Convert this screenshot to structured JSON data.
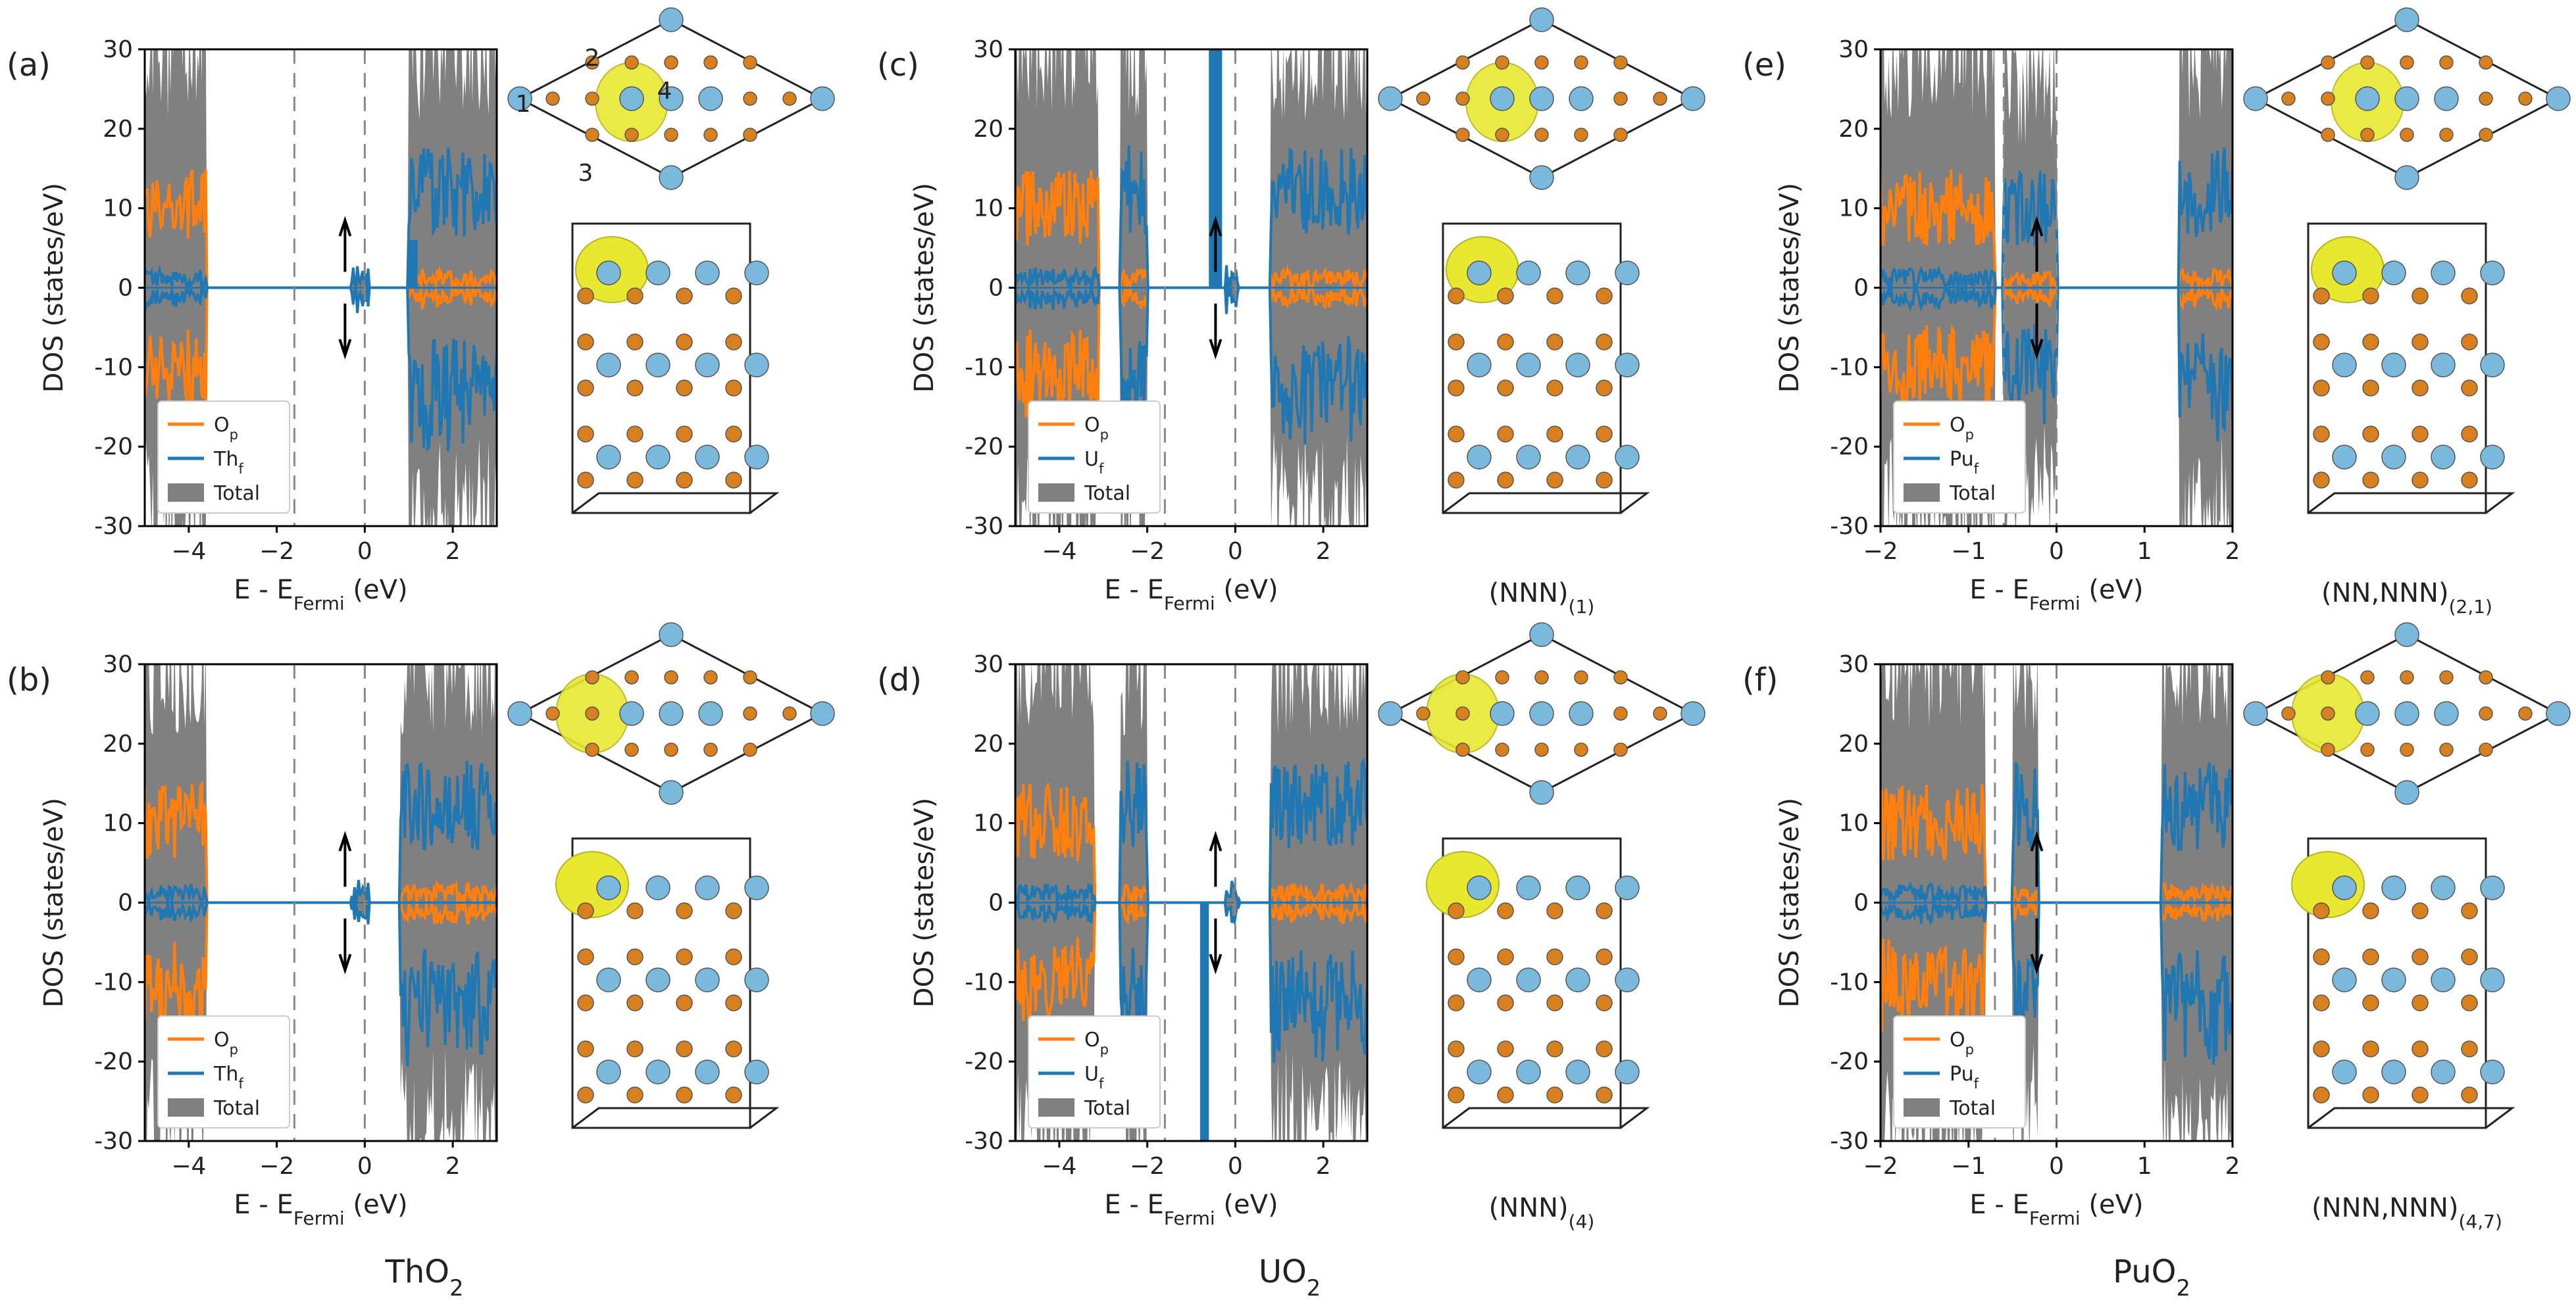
{
  "figure": {
    "materials": [
      {
        "key": "ThO2",
        "base": "ThO",
        "sub": "2"
      },
      {
        "key": "UO2",
        "base": "UO",
        "sub": "2"
      },
      {
        "key": "PuO2",
        "base": "PuO",
        "sub": "2"
      }
    ],
    "axis": {
      "ylabel": "DOS (states/eV)",
      "xlabel_base": "E - E",
      "xlabel_sub": "Fermi",
      "xlabel_unit": " (eV)"
    },
    "colors": {
      "op": "#ff7f0e",
      "f": "#1f77b4",
      "total": "#808080",
      "iso": "#e8e830",
      "o_atom": "#d9801e",
      "m_atom": "#7ab8dc"
    }
  },
  "chart_data": [
    {
      "id": "a",
      "type": "line",
      "material": "ThO2",
      "panel_label": "(a)",
      "xlim": [
        -5,
        3
      ],
      "ylim": [
        -30,
        30
      ],
      "xticks": [
        -4,
        -2,
        0,
        2
      ],
      "yticks": [
        -30,
        -20,
        -10,
        0,
        10,
        20,
        30
      ],
      "vlines": [
        -1.6,
        0
      ],
      "legend": [
        "Op",
        "Thf",
        "Total"
      ],
      "series": [
        {
          "name": "Op"
        },
        {
          "name": "Thf"
        },
        {
          "name": "Total"
        }
      ],
      "caption": null
    },
    {
      "id": "b",
      "type": "line",
      "material": "ThO2",
      "panel_label": "(b)",
      "xlim": [
        -5,
        3
      ],
      "ylim": [
        -30,
        30
      ],
      "xticks": [
        -4,
        -2,
        0,
        2
      ],
      "yticks": [
        -30,
        -20,
        -10,
        0,
        10,
        20,
        30
      ],
      "vlines": [
        -1.6,
        0
      ],
      "legend": [
        "Op",
        "Thf",
        "Total"
      ],
      "series": [
        {
          "name": "Op"
        },
        {
          "name": "Thf"
        },
        {
          "name": "Total"
        }
      ],
      "caption": null
    },
    {
      "id": "c",
      "type": "line",
      "material": "UO2",
      "panel_label": "(c)",
      "xlim": [
        -5,
        3
      ],
      "ylim": [
        -30,
        30
      ],
      "xticks": [
        -4,
        -2,
        0,
        2
      ],
      "yticks": [
        -30,
        -20,
        -10,
        0,
        10,
        20,
        30
      ],
      "vlines": [
        -1.6,
        0
      ],
      "legend": [
        "Op",
        "Uf",
        "Total"
      ],
      "series": [
        {
          "name": "Op"
        },
        {
          "name": "Uf"
        },
        {
          "name": "Total"
        }
      ],
      "caption": {
        "main": "(NNN)",
        "sub": "(1)"
      }
    },
    {
      "id": "d",
      "type": "line",
      "material": "UO2",
      "panel_label": "(d)",
      "xlim": [
        -5,
        3
      ],
      "ylim": [
        -30,
        30
      ],
      "xticks": [
        -4,
        -2,
        0,
        2
      ],
      "yticks": [
        -30,
        -20,
        -10,
        0,
        10,
        20,
        30
      ],
      "vlines": [
        -1.6,
        0
      ],
      "legend": [
        "Op",
        "Uf",
        "Total"
      ],
      "series": [
        {
          "name": "Op"
        },
        {
          "name": "Uf"
        },
        {
          "name": "Total"
        }
      ],
      "caption": {
        "main": "(NNN)",
        "sub": "(4)"
      }
    },
    {
      "id": "e",
      "type": "line",
      "material": "PuO2",
      "panel_label": "(e)",
      "xlim": [
        -2,
        2
      ],
      "ylim": [
        -30,
        30
      ],
      "xticks": [
        -2,
        -1,
        0,
        1,
        2
      ],
      "yticks": [
        -30,
        -20,
        -10,
        0,
        10,
        20,
        30
      ],
      "vlines": [
        -0.6,
        0
      ],
      "legend": [
        "Op",
        "Puf",
        "Total"
      ],
      "series": [
        {
          "name": "Op"
        },
        {
          "name": "Puf"
        },
        {
          "name": "Total"
        }
      ],
      "caption": {
        "main": "(NN,NNN)",
        "sub": "(2,1)"
      }
    },
    {
      "id": "f",
      "type": "line",
      "material": "PuO2",
      "panel_label": "(f)",
      "xlim": [
        -2,
        2
      ],
      "ylim": [
        -30,
        30
      ],
      "xticks": [
        -2,
        -1,
        0,
        1,
        2
      ],
      "yticks": [
        -30,
        -20,
        -10,
        0,
        10,
        20,
        30
      ],
      "vlines": [
        -0.7,
        0
      ],
      "legend": [
        "Op",
        "Puf",
        "Total"
      ],
      "series": [
        {
          "name": "Op"
        },
        {
          "name": "Puf"
        },
        {
          "name": "Total"
        }
      ],
      "caption": {
        "main": "(NNN,NNN)",
        "sub": "(4,7)"
      }
    }
  ],
  "structure_labels": [
    "1",
    "2",
    "3",
    "4"
  ]
}
